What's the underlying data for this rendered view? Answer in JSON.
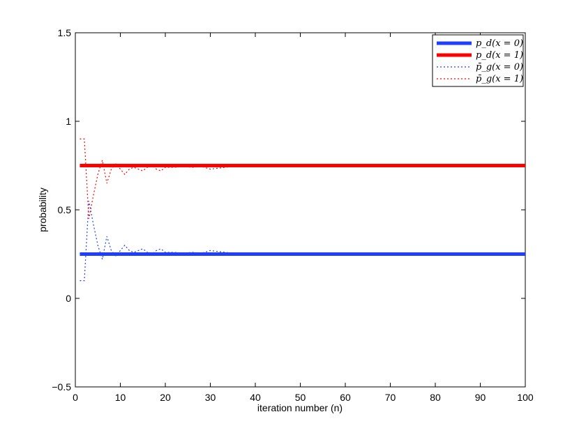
{
  "chart_data": {
    "type": "line",
    "xlabel": "iteration number (n)",
    "ylabel": "probability",
    "xlim": [
      0,
      100
    ],
    "ylim": [
      -0.5,
      1.5
    ],
    "xticks": [
      0,
      10,
      20,
      30,
      40,
      50,
      60,
      70,
      80,
      90,
      100
    ],
    "yticks": [
      -0.5,
      0,
      0.5,
      1,
      1.5
    ],
    "xtick_labels": [
      "0",
      "10",
      "20",
      "30",
      "40",
      "50",
      "60",
      "70",
      "80",
      "90",
      "100"
    ],
    "ytick_labels": [
      "−0.5",
      "0",
      "0.5",
      "1",
      "1.5"
    ],
    "legend_position": "top-right",
    "series": [
      {
        "name": "p_d(x = 0)",
        "style": "solid",
        "color": "#1f3fff",
        "x": [
          1,
          100
        ],
        "y": [
          0.25,
          0.25
        ]
      },
      {
        "name": "p_d(x = 1)",
        "style": "solid",
        "color": "#ff0000",
        "x": [
          1,
          100
        ],
        "y": [
          0.75,
          0.75
        ]
      },
      {
        "name": "p̄_g(x = 0)",
        "style": "dotted",
        "color": "#1f3fff",
        "x": [
          1,
          2,
          3,
          4,
          5,
          6,
          7,
          8,
          9,
          10,
          11,
          12,
          13,
          14,
          15,
          16,
          17,
          18,
          19,
          20,
          22,
          24,
          26,
          28,
          30,
          35,
          40,
          50,
          60,
          70,
          80,
          90,
          100
        ],
        "y": [
          0.1,
          0.1,
          0.55,
          0.42,
          0.3,
          0.22,
          0.35,
          0.27,
          0.24,
          0.27,
          0.3,
          0.27,
          0.26,
          0.27,
          0.28,
          0.26,
          0.25,
          0.27,
          0.28,
          0.26,
          0.26,
          0.255,
          0.26,
          0.255,
          0.27,
          0.255,
          0.25,
          0.255,
          0.25,
          0.255,
          0.25,
          0.255,
          0.25
        ]
      },
      {
        "name": "p̄_g(x = 1)",
        "style": "dotted",
        "color": "#ff0000",
        "x": [
          1,
          2,
          3,
          4,
          5,
          6,
          7,
          8,
          9,
          10,
          11,
          12,
          13,
          14,
          15,
          16,
          17,
          18,
          19,
          20,
          22,
          24,
          26,
          28,
          30,
          35,
          40,
          50,
          60,
          70,
          80,
          90,
          100
        ],
        "y": [
          0.9,
          0.9,
          0.45,
          0.58,
          0.7,
          0.78,
          0.65,
          0.73,
          0.76,
          0.73,
          0.7,
          0.73,
          0.74,
          0.73,
          0.72,
          0.74,
          0.75,
          0.73,
          0.72,
          0.74,
          0.74,
          0.745,
          0.74,
          0.745,
          0.73,
          0.745,
          0.75,
          0.745,
          0.75,
          0.745,
          0.75,
          0.745,
          0.75
        ]
      }
    ]
  }
}
